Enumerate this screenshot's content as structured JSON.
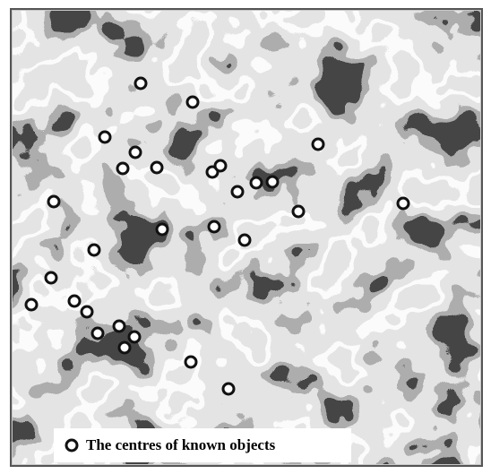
{
  "legend": {
    "label": "The centres of known objects"
  }
}
